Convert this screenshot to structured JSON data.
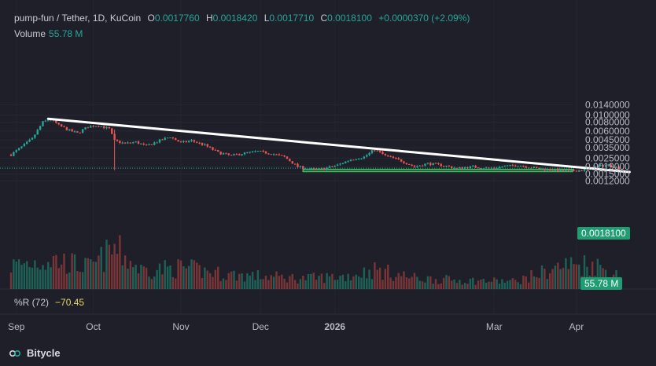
{
  "header": {
    "symbol": "pump-fun / Tether, 1D, KuCoin",
    "open_label": "O",
    "open": "0.0017760",
    "high_label": "H",
    "high": "0.0018420",
    "low_label": "L",
    "low": "0.0017710",
    "close_label": "C",
    "close": "0.0018100",
    "change": "+0.0000370 (+2.09%)",
    "volume_label": "Volume",
    "volume": "55.78 M"
  },
  "indicator": {
    "label": "%R (72)",
    "value": "−70.45"
  },
  "brand": {
    "name": "Bitycle",
    "icon": "bitycle-logo-icon"
  },
  "price_tag": "0.0018100",
  "volume_tag": "55.78 M",
  "colors": {
    "up": "#26a69a",
    "down": "#ef5350",
    "bg": "#1e1f29",
    "trendline": "#ffffff",
    "support": "#3fbf5a"
  },
  "chart_data": {
    "type": "candlestick",
    "y_scale": "log",
    "y_ticks": [
      "0.0140000",
      "0.0100000",
      "0.0080000",
      "0.0060000",
      "0.0045000",
      "0.0035000",
      "0.0025000",
      "0.0019000",
      "0.0015000",
      "0.0012000"
    ],
    "y_tick_values": [
      0.014,
      0.01,
      0.008,
      0.006,
      0.0045,
      0.0035,
      0.0025,
      0.0019,
      0.0015,
      0.0012
    ],
    "x_ticks": [
      "Sep",
      "Oct",
      "Nov",
      "Dec",
      "2026",
      "Mar",
      "Apr"
    ],
    "trendline": {
      "from": {
        "date": "2025-09-15",
        "price": 0.0089
      },
      "to": {
        "date": "2026-04-22",
        "price": 0.0016
      }
    },
    "support_zone": {
      "low": 0.00162,
      "high": 0.00174
    },
    "last_price": 0.00181,
    "price_path": [
      [
        "2025-09-01",
        0.0028
      ],
      [
        "2025-09-05",
        0.0036
      ],
      [
        "2025-09-09",
        0.0047
      ],
      [
        "2025-09-13",
        0.008
      ],
      [
        "2025-09-16",
        0.0088
      ],
      [
        "2025-09-19",
        0.0072
      ],
      [
        "2025-09-23",
        0.0061
      ],
      [
        "2025-09-26",
        0.0056
      ],
      [
        "2025-09-30",
        0.0069
      ],
      [
        "2025-10-04",
        0.0072
      ],
      [
        "2025-10-08",
        0.0064
      ],
      [
        "2025-10-10",
        0.0044
      ],
      [
        "2025-10-14",
        0.004
      ],
      [
        "2025-10-18",
        0.0042
      ],
      [
        "2025-10-22",
        0.0037
      ],
      [
        "2025-10-27",
        0.0044
      ],
      [
        "2025-10-31",
        0.005
      ],
      [
        "2025-11-04",
        0.0041
      ],
      [
        "2025-11-08",
        0.0044
      ],
      [
        "2025-11-13",
        0.0038
      ],
      [
        "2025-11-18",
        0.003
      ],
      [
        "2025-11-23",
        0.0027
      ],
      [
        "2025-11-27",
        0.0029
      ],
      [
        "2025-12-03",
        0.0031
      ],
      [
        "2025-12-08",
        0.0029
      ],
      [
        "2025-12-13",
        0.0026
      ],
      [
        "2025-12-18",
        0.0019
      ],
      [
        "2025-12-23",
        0.00175
      ],
      [
        "2025-12-28",
        0.00178
      ],
      [
        "2026-01-02",
        0.002
      ],
      [
        "2026-01-07",
        0.0024
      ],
      [
        "2026-01-12",
        0.0026
      ],
      [
        "2026-01-16",
        0.0033
      ],
      [
        "2026-01-20",
        0.0027
      ],
      [
        "2026-01-26",
        0.0023
      ],
      [
        "2026-01-31",
        0.0019
      ],
      [
        "2026-02-05",
        0.0021
      ],
      [
        "2026-02-10",
        0.002
      ],
      [
        "2026-02-16",
        0.0018
      ],
      [
        "2026-02-22",
        0.0019
      ],
      [
        "2026-02-28",
        0.0018
      ],
      [
        "2026-03-05",
        0.0019
      ],
      [
        "2026-03-11",
        0.002
      ],
      [
        "2026-03-18",
        0.0018
      ],
      [
        "2026-03-24",
        0.0017
      ],
      [
        "2026-03-30",
        0.00165
      ],
      [
        "2026-04-04",
        0.0017
      ],
      [
        "2026-04-09",
        0.0019
      ],
      [
        "2026-04-14",
        0.002
      ],
      [
        "2026-04-18",
        0.00181
      ]
    ],
    "volume_path": [
      [
        "2025-09-01",
        55
      ],
      [
        "2025-09-16",
        70
      ],
      [
        "2025-10-01",
        50
      ],
      [
        "2025-10-10",
        95
      ],
      [
        "2025-10-20",
        45
      ],
      [
        "2025-11-05",
        50
      ],
      [
        "2025-11-20",
        35
      ],
      [
        "2025-12-05",
        30
      ],
      [
        "2025-12-20",
        25
      ],
      [
        "2026-01-05",
        30
      ],
      [
        "2026-01-16",
        45
      ],
      [
        "2026-02-01",
        25
      ],
      [
        "2026-02-20",
        20
      ],
      [
        "2026-03-10",
        18
      ],
      [
        "2026-03-28",
        55
      ],
      [
        "2026-04-08",
        60
      ],
      [
        "2026-04-18",
        30
      ]
    ]
  }
}
